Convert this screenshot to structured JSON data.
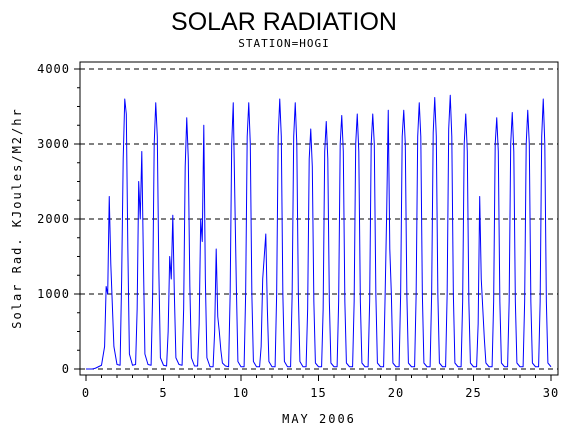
{
  "chart_data": {
    "type": "line",
    "title": "SOLAR RADIATION",
    "subtitle": "STATION=HOGI",
    "xlabel": "MAY 2006",
    "ylabel": "Solar Rad. KJoules/M2/hr",
    "xlim": [
      0,
      30
    ],
    "ylim": [
      0,
      4000
    ],
    "x_ticks": [
      0,
      5,
      10,
      15,
      20,
      25,
      30
    ],
    "x_tick_labels": [
      "0",
      "5",
      "10",
      "15",
      "20",
      "25",
      "30"
    ],
    "y_ticks": [
      0,
      1000,
      2000,
      3000,
      4000
    ],
    "y_tick_labels": [
      "0",
      "1000",
      "2000",
      "3000",
      "4000"
    ],
    "grid": "horizontal dashed",
    "series_color": "#0000ff",
    "series": [
      {
        "x": [
          0.0,
          0.2,
          0.4,
          0.6,
          0.8,
          1.0,
          1.2,
          1.3,
          1.4,
          1.5,
          1.6,
          1.8,
          2.0,
          2.2,
          2.3,
          2.4,
          2.5,
          2.6,
          2.7,
          2.8,
          3.0,
          3.2,
          3.3,
          3.4,
          3.5,
          3.6,
          3.7,
          3.8,
          4.0,
          4.2,
          4.3,
          4.4,
          4.5,
          4.6,
          4.7,
          4.8,
          5.0,
          5.2,
          5.3,
          5.4,
          5.5,
          5.6,
          5.7,
          5.8,
          6.0,
          6.2,
          6.3,
          6.4,
          6.5,
          6.6,
          6.7,
          6.8,
          7.0,
          7.2,
          7.3,
          7.4,
          7.5,
          7.6,
          7.7,
          7.8,
          8.0,
          8.2,
          8.3,
          8.4,
          8.5,
          8.6,
          8.7,
          8.8,
          9.0,
          9.2,
          9.3,
          9.4,
          9.5,
          9.6,
          9.7,
          9.8,
          10.0,
          10.2,
          10.3,
          10.4,
          10.5,
          10.6,
          10.7,
          10.8,
          11.0,
          11.2,
          11.3,
          11.4,
          11.5,
          11.6,
          11.7,
          11.8,
          12.0,
          12.2,
          12.3,
          12.4,
          12.5,
          12.6,
          12.7,
          12.8,
          13.0,
          13.2,
          13.3,
          13.4,
          13.5,
          13.6,
          13.7,
          13.8,
          14.0,
          14.2,
          14.3,
          14.4,
          14.5,
          14.6,
          14.7,
          14.8,
          15.0,
          15.2,
          15.3,
          15.4,
          15.5,
          15.6,
          15.7,
          15.8,
          16.0,
          16.2,
          16.3,
          16.4,
          16.5,
          16.6,
          16.7,
          16.8,
          17.0,
          17.2,
          17.3,
          17.4,
          17.5,
          17.6,
          17.7,
          17.8,
          18.0,
          18.2,
          18.3,
          18.4,
          18.5,
          18.6,
          18.7,
          18.8,
          19.0,
          19.2,
          19.3,
          19.4,
          19.5,
          19.6,
          19.7,
          19.8,
          20.0,
          20.2,
          20.3,
          20.4,
          20.5,
          20.6,
          20.7,
          20.8,
          21.0,
          21.2,
          21.3,
          21.4,
          21.5,
          21.6,
          21.7,
          21.8,
          22.0,
          22.2,
          22.3,
          22.4,
          22.5,
          22.6,
          22.7,
          22.8,
          23.0,
          23.2,
          23.3,
          23.4,
          23.5,
          23.6,
          23.7,
          23.8,
          24.0,
          24.2,
          24.3,
          24.4,
          24.5,
          24.6,
          24.7,
          24.8,
          25.0,
          25.2,
          25.3,
          25.4,
          25.5,
          25.6,
          25.7,
          25.8,
          26.0,
          26.2,
          26.3,
          26.4,
          26.5,
          26.6,
          26.7,
          26.8,
          27.0,
          27.2,
          27.3,
          27.4,
          27.5,
          27.6,
          27.7,
          27.8,
          28.0,
          28.2,
          28.3,
          28.4,
          28.5,
          28.6,
          28.7,
          28.8,
          29.0,
          29.2,
          29.3,
          29.4,
          29.5,
          29.6,
          29.7,
          29.8,
          30.0
        ],
        "y": [
          0,
          0,
          0,
          10,
          30,
          50,
          300,
          1100,
          1000,
          2300,
          1400,
          300,
          60,
          50,
          1200,
          2800,
          3600,
          3400,
          1600,
          200,
          50,
          60,
          800,
          2500,
          2000,
          2900,
          1500,
          200,
          60,
          50,
          1000,
          3000,
          3550,
          3100,
          1300,
          150,
          50,
          40,
          500,
          1500,
          1200,
          2050,
          1000,
          150,
          60,
          50,
          800,
          2700,
          3350,
          2800,
          1100,
          150,
          40,
          40,
          600,
          2000,
          1700,
          3250,
          1200,
          150,
          30,
          30,
          500,
          1600,
          700,
          500,
          250,
          80,
          40,
          30,
          1000,
          3000,
          3550,
          2300,
          1100,
          100,
          30,
          30,
          1000,
          3100,
          3550,
          3000,
          1000,
          100,
          30,
          30,
          300,
          1200,
          1500,
          1800,
          800,
          100,
          30,
          30,
          1000,
          3100,
          3600,
          3100,
          1000,
          100,
          30,
          30,
          1000,
          3100,
          3550,
          3000,
          1000,
          100,
          30,
          30,
          800,
          2800,
          3200,
          2700,
          900,
          80,
          30,
          30,
          800,
          2900,
          3300,
          2800,
          900,
          80,
          30,
          30,
          900,
          3000,
          3380,
          2900,
          900,
          80,
          30,
          30,
          900,
          3000,
          3400,
          2900,
          900,
          80,
          30,
          30,
          900,
          3000,
          3400,
          3000,
          1000,
          80,
          30,
          30,
          1000,
          2100,
          3450,
          1600,
          1000,
          80,
          30,
          30,
          1000,
          3100,
          3450,
          3000,
          1000,
          80,
          30,
          30,
          1000,
          3100,
          3550,
          3100,
          1000,
          80,
          30,
          30,
          1000,
          3150,
          3620,
          3100,
          1000,
          80,
          30,
          30,
          1000,
          3200,
          3650,
          3100,
          1000,
          80,
          30,
          30,
          900,
          3000,
          3400,
          2900,
          900,
          80,
          30,
          30,
          600,
          2300,
          1200,
          800,
          400,
          80,
          30,
          30,
          900,
          3000,
          3350,
          2900,
          900,
          80,
          30,
          30,
          900,
          3000,
          3420,
          2900,
          900,
          80,
          30,
          30,
          900,
          3000,
          3450,
          3000,
          900,
          80,
          30,
          30,
          900,
          3100,
          3600,
          3000,
          900,
          80,
          30
        ]
      }
    ]
  }
}
